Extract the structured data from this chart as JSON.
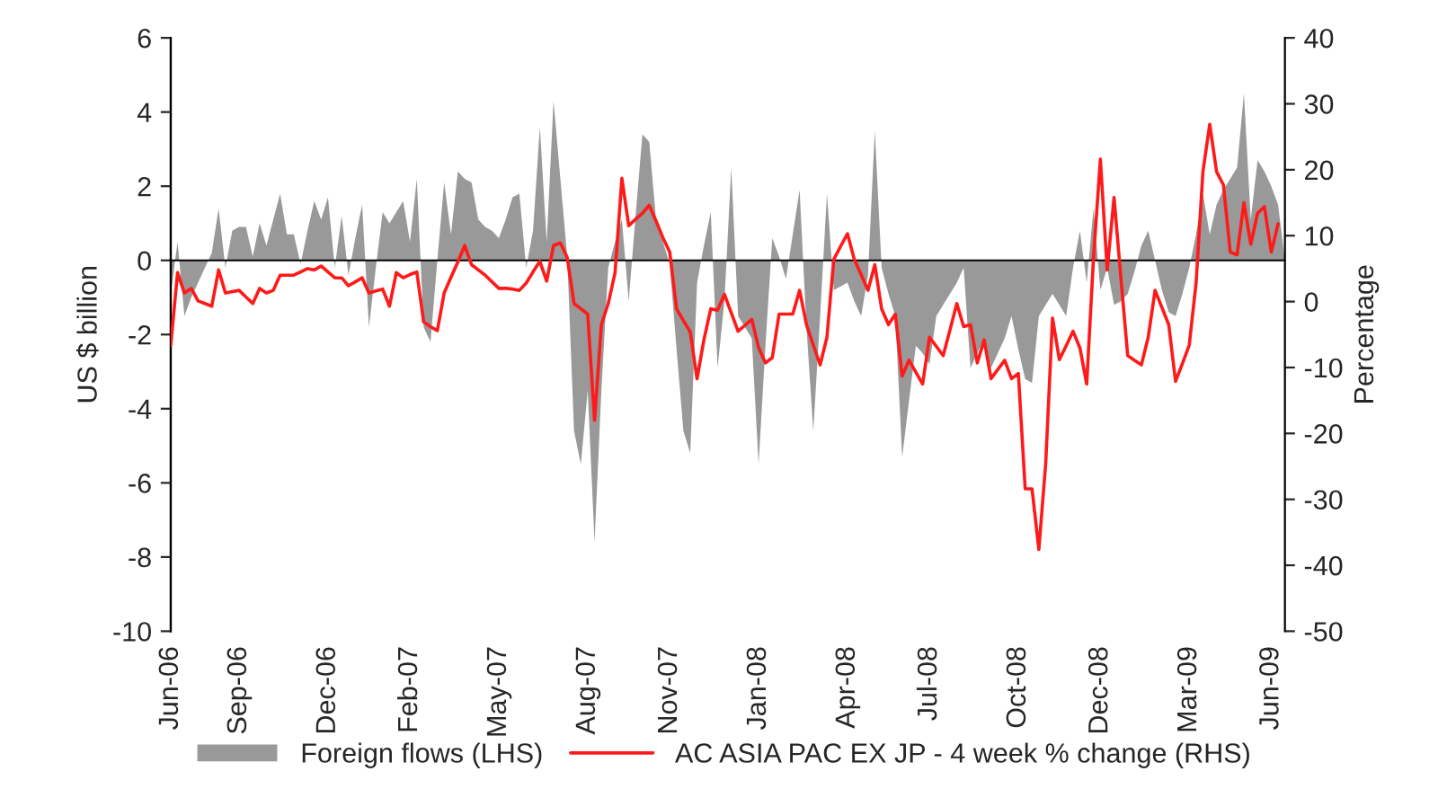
{
  "chart_data": {
    "type": "area",
    "ylabel": "US $ billion",
    "y2label": "Percentage",
    "categories": [
      "Jun-06",
      null,
      null,
      null,
      null,
      null,
      null,
      null,
      null,
      null,
      "Sep-06",
      null,
      null,
      null,
      null,
      null,
      null,
      null,
      null,
      null,
      null,
      null,
      null,
      "Dec-06",
      null,
      null,
      null,
      null,
      null,
      null,
      null,
      null,
      null,
      null,
      null,
      "Feb-07",
      null,
      null,
      null,
      null,
      null,
      null,
      null,
      null,
      null,
      null,
      null,
      null,
      "May-07",
      null,
      null,
      null,
      null,
      null,
      null,
      null,
      null,
      null,
      null,
      null,
      null,
      "Aug-07",
      null,
      null,
      null,
      null,
      null,
      null,
      null,
      null,
      null,
      null,
      null,
      "Nov-07",
      null,
      null,
      null,
      null,
      null,
      null,
      null,
      null,
      null,
      null,
      null,
      null,
      "Jan-08",
      null,
      null,
      null,
      null,
      null,
      null,
      null,
      null,
      null,
      null,
      null,
      null,
      "Apr-08",
      null,
      null,
      null,
      null,
      null,
      null,
      null,
      null,
      null,
      null,
      null,
      "Jul-08",
      null,
      null,
      null,
      null,
      null,
      null,
      null,
      null,
      null,
      null,
      null,
      null,
      "Oct-08",
      null,
      null,
      null,
      null,
      null,
      null,
      null,
      null,
      null,
      null,
      null,
      "Dec-08",
      null,
      null,
      null,
      null,
      null,
      null,
      null,
      null,
      null,
      null,
      null,
      null,
      "Mar-09",
      null,
      null,
      null,
      null,
      null,
      null,
      null,
      null,
      null,
      null,
      null,
      "Jun-09",
      null,
      null
    ],
    "ylim": [
      -10,
      6
    ],
    "yticks": [
      -10,
      -8,
      -6,
      -4,
      -2,
      0,
      2,
      4,
      6
    ],
    "y2lim": [
      -50,
      40
    ],
    "y2ticks": [
      -50,
      -40,
      -30,
      -20,
      -10,
      0,
      10,
      20,
      30,
      40
    ],
    "legend": "bottom",
    "series": [
      {
        "name": "Foreign flows (LHS)",
        "color": "#999999",
        "values": [
          -0.9,
          0.5,
          -1.5,
          -1.0,
          -0.6,
          -0.2,
          0.2,
          1.4,
          -0.2,
          0.8,
          0.9,
          0.9,
          0.1,
          1.0,
          0.4,
          1.1,
          1.8,
          0.7,
          0.7,
          -0.1,
          0.8,
          1.6,
          1.1,
          1.7,
          -0.2,
          1.2,
          -0.4,
          0.6,
          1.5,
          -1.8,
          -0.2,
          1.3,
          1.0,
          1.3,
          1.6,
          0.5,
          2.2,
          -1.8,
          -2.2,
          0.0,
          2.1,
          0.7,
          2.4,
          2.2,
          2.1,
          1.1,
          0.9,
          0.8,
          0.6,
          1.1,
          1.7,
          1.8,
          -0.2,
          0.8,
          3.6,
          0.5,
          4.3,
          2.2,
          0.1,
          -4.6,
          -5.5,
          -3.5,
          -7.6,
          -3.5,
          -0.2,
          0.5,
          1.1,
          -1.1,
          1.2,
          3.4,
          3.2,
          1.1,
          0.5,
          -0.1,
          -2.4,
          -4.6,
          -5.2,
          -0.6,
          0.4,
          1.3,
          -2.9,
          -1.1,
          2.5,
          -1.5,
          -1.8,
          -2.1,
          -5.5,
          -2.3,
          0.6,
          0.1,
          -0.5,
          0.7,
          1.9,
          -1.8,
          -4.6,
          -1.5,
          1.8,
          -0.8,
          -0.7,
          -0.6,
          -1.1,
          -1.5,
          -0.4,
          3.5,
          -0.2,
          -0.9,
          -1.5,
          -5.3,
          -3.8,
          -2.3,
          -2.5,
          -2.8,
          -1.5,
          -1.2,
          -0.9,
          -0.6,
          -0.2,
          -2.9,
          -2.5,
          -2.1,
          -2.9,
          -2.5,
          -2.1,
          -1.5,
          -2.4,
          -3.2,
          -3.3,
          -1.5,
          -1.2,
          -0.9,
          -1.2,
          -1.5,
          -0.2,
          0.8,
          -0.6,
          1.4,
          -0.8,
          -0.2,
          -1.2,
          -1.1,
          -0.9,
          -0.3,
          0.4,
          0.8,
          0.0,
          -0.8,
          -1.4,
          -1.5,
          -0.9,
          -0.2,
          0.7,
          1.8,
          0.7,
          1.5,
          1.9,
          2.2,
          2.5,
          4.5,
          1.1,
          2.7,
          2.4,
          2.0,
          1.5,
          0
        ]
      },
      {
        "type": "line",
        "axis": "y2",
        "name": "AC ASIA PAC EX JP - 4 week % change (RHS)",
        "color": "#ff1a1a",
        "values": [
          -6.6,
          4.4,
          1.3,
          2.0,
          0.1,
          -0.3,
          -0.7,
          4.8,
          1.3,
          1.5,
          1.7,
          0.7,
          -0.3,
          2.0,
          1.3,
          1.7,
          4.0,
          4.0,
          4.0,
          4.5,
          5.0,
          4.8,
          5.4,
          4.5,
          3.6,
          3.6,
          2.4,
          3.0,
          3.6,
          1.3,
          1.6,
          1.9,
          -0.7,
          4.4,
          3.6,
          4.1,
          4.5,
          -3.1,
          -3.8,
          -4.4,
          1.3,
          3.7,
          6.0,
          8.5,
          5.6,
          4.8,
          4.0,
          3.0,
          2.0,
          2.0,
          1.9,
          1.7,
          2.8,
          4.5,
          6.1,
          3.1,
          8.5,
          8.9,
          6.7,
          -0.3,
          -1.1,
          -1.9,
          -18.0,
          -3.5,
          -0.3,
          4.4,
          18.7,
          11.5,
          12.5,
          13.4,
          14.6,
          12.2,
          9.7,
          7.5,
          -1.1,
          -2.9,
          -4.6,
          -11.7,
          -5.8,
          -1.1,
          -1.3,
          1.1,
          -1.7,
          -4.5,
          -3.6,
          -2.7,
          -7.0,
          -9.3,
          -8.5,
          -1.9,
          -1.9,
          -1.9,
          1.7,
          -3.5,
          -6.6,
          -9.6,
          -5.4,
          6.4,
          8.4,
          10.3,
          6.4,
          4.1,
          1.7,
          5.6,
          -1.1,
          -3.5,
          -1.9,
          -11.3,
          -8.9,
          -10.7,
          -12.5,
          -5.4,
          -6.8,
          -8.2,
          -4.3,
          -0.3,
          -3.8,
          -3.5,
          -9.3,
          -5.8,
          -11.7,
          -10.3,
          -8.9,
          -11.7,
          -10.9,
          -28.4,
          -28.4,
          -37.6,
          -24.6,
          -2.5,
          -8.8,
          -6.7,
          -4.5,
          -7.0,
          -12.5,
          6.7,
          21.6,
          4.8,
          15.8,
          3.6,
          -8.2,
          -8.9,
          -9.6,
          -5.4,
          1.7,
          -0.9,
          -3.5,
          -12.1,
          -9.4,
          -6.6,
          2.8,
          19.7,
          26.9,
          19.7,
          17.7,
          7.5,
          7.1,
          15.0,
          8.7,
          13.4,
          14.4,
          7.5,
          11.8,
          null
        ]
      }
    ]
  }
}
